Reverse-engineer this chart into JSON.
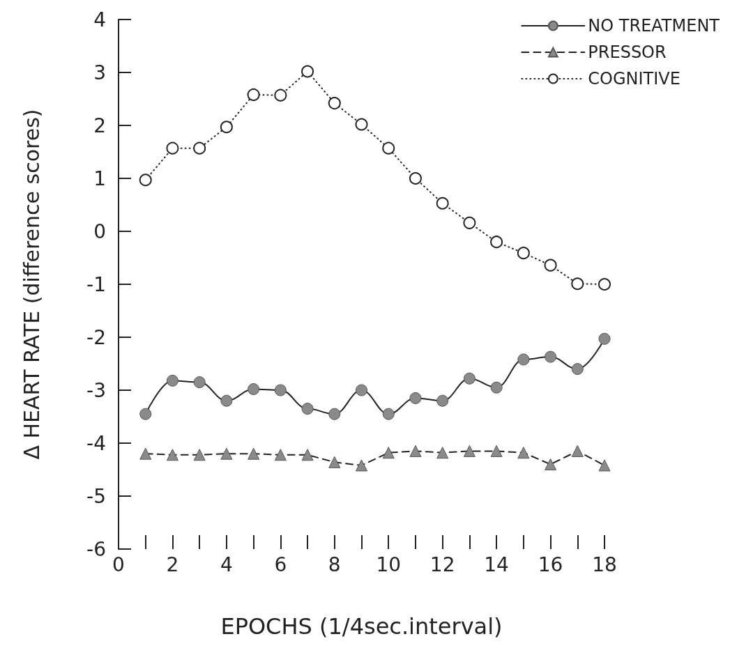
{
  "chart_data": {
    "type": "line",
    "xlabel": "EPOCHS (1/4sec.interval)",
    "ylabel": "Δ HEART RATE (difference scores)",
    "x": [
      1,
      2,
      3,
      4,
      5,
      6,
      7,
      8,
      9,
      10,
      11,
      12,
      13,
      14,
      15,
      16,
      17,
      18
    ],
    "xlim": [
      0,
      18
    ],
    "xticks": [
      0,
      2,
      4,
      6,
      8,
      10,
      12,
      14,
      16,
      18
    ],
    "ylim": [
      -6,
      4
    ],
    "yticks": [
      -6,
      -5,
      -4,
      -3,
      -2,
      -1,
      0,
      1,
      2,
      3,
      4
    ],
    "grid": false,
    "legend": "top right",
    "series": [
      {
        "name": "NO TREATMENT",
        "color": "#8a8a8a",
        "marker": "circle",
        "line_style": "solid",
        "values": [
          -3.45,
          -2.82,
          -2.85,
          -3.2,
          -2.98,
          -3.0,
          -3.35,
          -3.45,
          -3.0,
          -3.45,
          -3.15,
          -3.2,
          -2.78,
          -2.95,
          -2.42,
          -2.37,
          -2.6,
          -2.03
        ]
      },
      {
        "name": "PRESSOR",
        "color": "#8a8a8a",
        "marker": "triangle",
        "line_style": "dashed",
        "values": [
          -4.2,
          -4.22,
          -4.22,
          -4.2,
          -4.2,
          -4.22,
          -4.22,
          -4.36,
          -4.42,
          -4.18,
          -4.15,
          -4.18,
          -4.15,
          -4.15,
          -4.18,
          -4.4,
          -4.15,
          -4.42
        ]
      },
      {
        "name": "COGNITIVE",
        "color": "#222222",
        "marker": "emptyCircle",
        "line_style": "dotted",
        "values": [
          0.97,
          1.57,
          1.57,
          1.97,
          2.58,
          2.57,
          3.02,
          2.42,
          2.02,
          1.57,
          1.0,
          0.53,
          0.16,
          -0.2,
          -0.41,
          -0.64,
          -0.99,
          -1.0
        ]
      }
    ]
  }
}
